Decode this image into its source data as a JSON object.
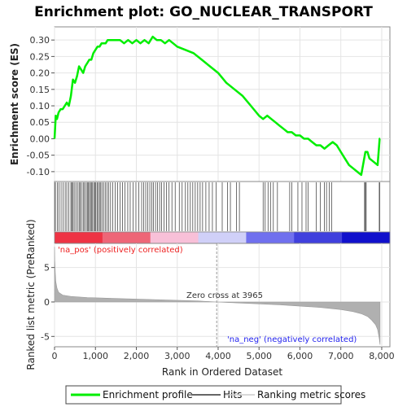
{
  "chart_data": {
    "type": "line",
    "title": "Enrichment plot: GO_NUCLEAR_TRANSPORT",
    "es_panel": {
      "ylabel": "Enrichment score (ES)",
      "ylim": [
        -0.13,
        0.34
      ],
      "yticks": [
        0.3,
        0.25,
        0.2,
        0.15,
        0.1,
        0.05,
        0.0,
        -0.05,
        -0.1
      ],
      "ytick_labels": [
        "0.30",
        "0.25",
        "0.20",
        "0.15",
        "0.10",
        "0.05",
        "0.00",
        "-0.05",
        "-0.10"
      ],
      "series": [
        {
          "name": "Enrichment profile",
          "color": "#00ee00",
          "x": [
            0,
            30,
            60,
            100,
            150,
            200,
            250,
            300,
            350,
            400,
            450,
            500,
            550,
            600,
            650,
            700,
            750,
            800,
            850,
            900,
            950,
            1000,
            1050,
            1100,
            1150,
            1200,
            1250,
            1300,
            1350,
            1400,
            1500,
            1600,
            1700,
            1800,
            1900,
            2000,
            2100,
            2200,
            2300,
            2400,
            2500,
            2600,
            2700,
            2800,
            2900,
            3000,
            3200,
            3400,
            3600,
            3800,
            4000,
            4200,
            4400,
            4600,
            4800,
            5000,
            5100,
            5200,
            5300,
            5400,
            5500,
            5600,
            5700,
            5800,
            5900,
            6000,
            6100,
            6200,
            6300,
            6400,
            6500,
            6600,
            6700,
            6800,
            6900,
            7000,
            7100,
            7200,
            7300,
            7400,
            7500,
            7600,
            7650,
            7700,
            7800,
            7900,
            7950,
            7960
          ],
          "y": [
            0.0,
            0.07,
            0.06,
            0.08,
            0.09,
            0.09,
            0.1,
            0.11,
            0.1,
            0.13,
            0.18,
            0.17,
            0.19,
            0.22,
            0.21,
            0.2,
            0.22,
            0.23,
            0.24,
            0.24,
            0.26,
            0.27,
            0.28,
            0.28,
            0.29,
            0.29,
            0.29,
            0.3,
            0.3,
            0.3,
            0.3,
            0.3,
            0.29,
            0.3,
            0.29,
            0.3,
            0.29,
            0.3,
            0.29,
            0.31,
            0.3,
            0.3,
            0.29,
            0.3,
            0.29,
            0.28,
            0.27,
            0.26,
            0.24,
            0.22,
            0.2,
            0.17,
            0.15,
            0.13,
            0.1,
            0.07,
            0.06,
            0.07,
            0.06,
            0.05,
            0.04,
            0.03,
            0.02,
            0.02,
            0.01,
            0.01,
            0.0,
            0.0,
            -0.01,
            -0.02,
            -0.02,
            -0.03,
            -0.02,
            -0.01,
            -0.02,
            -0.04,
            -0.06,
            -0.08,
            -0.09,
            -0.1,
            -0.11,
            -0.04,
            -0.04,
            -0.06,
            -0.07,
            -0.08,
            0.0,
            0.0
          ]
        }
      ]
    },
    "hits_panel": {
      "hit_positions": [
        20,
        70,
        110,
        160,
        210,
        260,
        300,
        350,
        400,
        420,
        450,
        480,
        520,
        560,
        600,
        630,
        660,
        700,
        730,
        770,
        800,
        820,
        850,
        880,
        900,
        930,
        960,
        990,
        1010,
        1040,
        1070,
        1100,
        1130,
        1160,
        1200,
        1240,
        1280,
        1320,
        1370,
        1420,
        1480,
        1540,
        1600,
        1660,
        1720,
        1790,
        1850,
        1920,
        1990,
        2060,
        2130,
        2180,
        2230,
        2280,
        2330,
        2380,
        2420,
        2470,
        2520,
        2570,
        2620,
        2680,
        2740,
        2800,
        2870,
        2950,
        3050,
        3120,
        3200,
        3260,
        3320,
        3380,
        3440,
        3500,
        3560,
        3620,
        3700,
        3780,
        3860,
        3950,
        4100,
        4230,
        4300,
        4450,
        4520,
        5100,
        5150,
        5220,
        5280,
        5350,
        5450,
        5750,
        5800,
        5950,
        6050,
        6150,
        6200,
        6400,
        6500,
        6600,
        6650,
        6720,
        6780,
        7580,
        7600,
        7620,
        7940,
        7950
      ]
    },
    "ranking_bar_colors": [
      "#ee3344",
      "#ee6677",
      "#f8c0d8",
      "#d0d0f8",
      "#7070ee",
      "#4040dd",
      "#1010cc"
    ],
    "metric_panel": {
      "ylabel": "Ranked list metric (PreRanked)",
      "ylim": [
        -6.5,
        8.5
      ],
      "yticks": [
        5,
        0,
        -5
      ],
      "ytick_labels": [
        "5",
        "0",
        "-5"
      ],
      "zero_cross_label": "Zero cross at 3965",
      "zero_cross": 3965,
      "pos_label": "'na_pos' (positively correlated)",
      "neg_label": "'na_neg' (negatively correlated)",
      "metric_profile": {
        "x": [
          0,
          5,
          15,
          30,
          60,
          100,
          200,
          400,
          800,
          1500,
          2500,
          3500,
          3965,
          4500,
          5500,
          6500,
          7000,
          7300,
          7500,
          7650,
          7750,
          7850,
          7900,
          7940,
          7960
        ],
        "y": [
          8.0,
          6.0,
          4.5,
          3.0,
          2.0,
          1.4,
          1.0,
          0.8,
          0.65,
          0.5,
          0.33,
          0.15,
          0.0,
          -0.15,
          -0.4,
          -0.8,
          -1.1,
          -1.4,
          -1.7,
          -2.1,
          -2.6,
          -3.3,
          -4.0,
          -5.3,
          -6.2
        ]
      }
    },
    "xaxis": {
      "xlabel": "Rank in Ordered Dataset",
      "xlim": [
        0,
        8200
      ],
      "xticks": [
        0,
        1000,
        2000,
        3000,
        4000,
        5000,
        6000,
        7000,
        8000
      ],
      "xtick_labels": [
        "0",
        "1,000",
        "2,000",
        "3,000",
        "4,000",
        "5,000",
        "6,000",
        "7,000",
        "8,000"
      ]
    },
    "legend": {
      "placement": "bottom",
      "entries": [
        {
          "label": "Enrichment profile",
          "color": "#00ee00"
        },
        {
          "label": "Hits",
          "color": "#666666"
        },
        {
          "label": "Ranking metric scores",
          "color": "#cccccc"
        }
      ]
    },
    "grid": true
  }
}
